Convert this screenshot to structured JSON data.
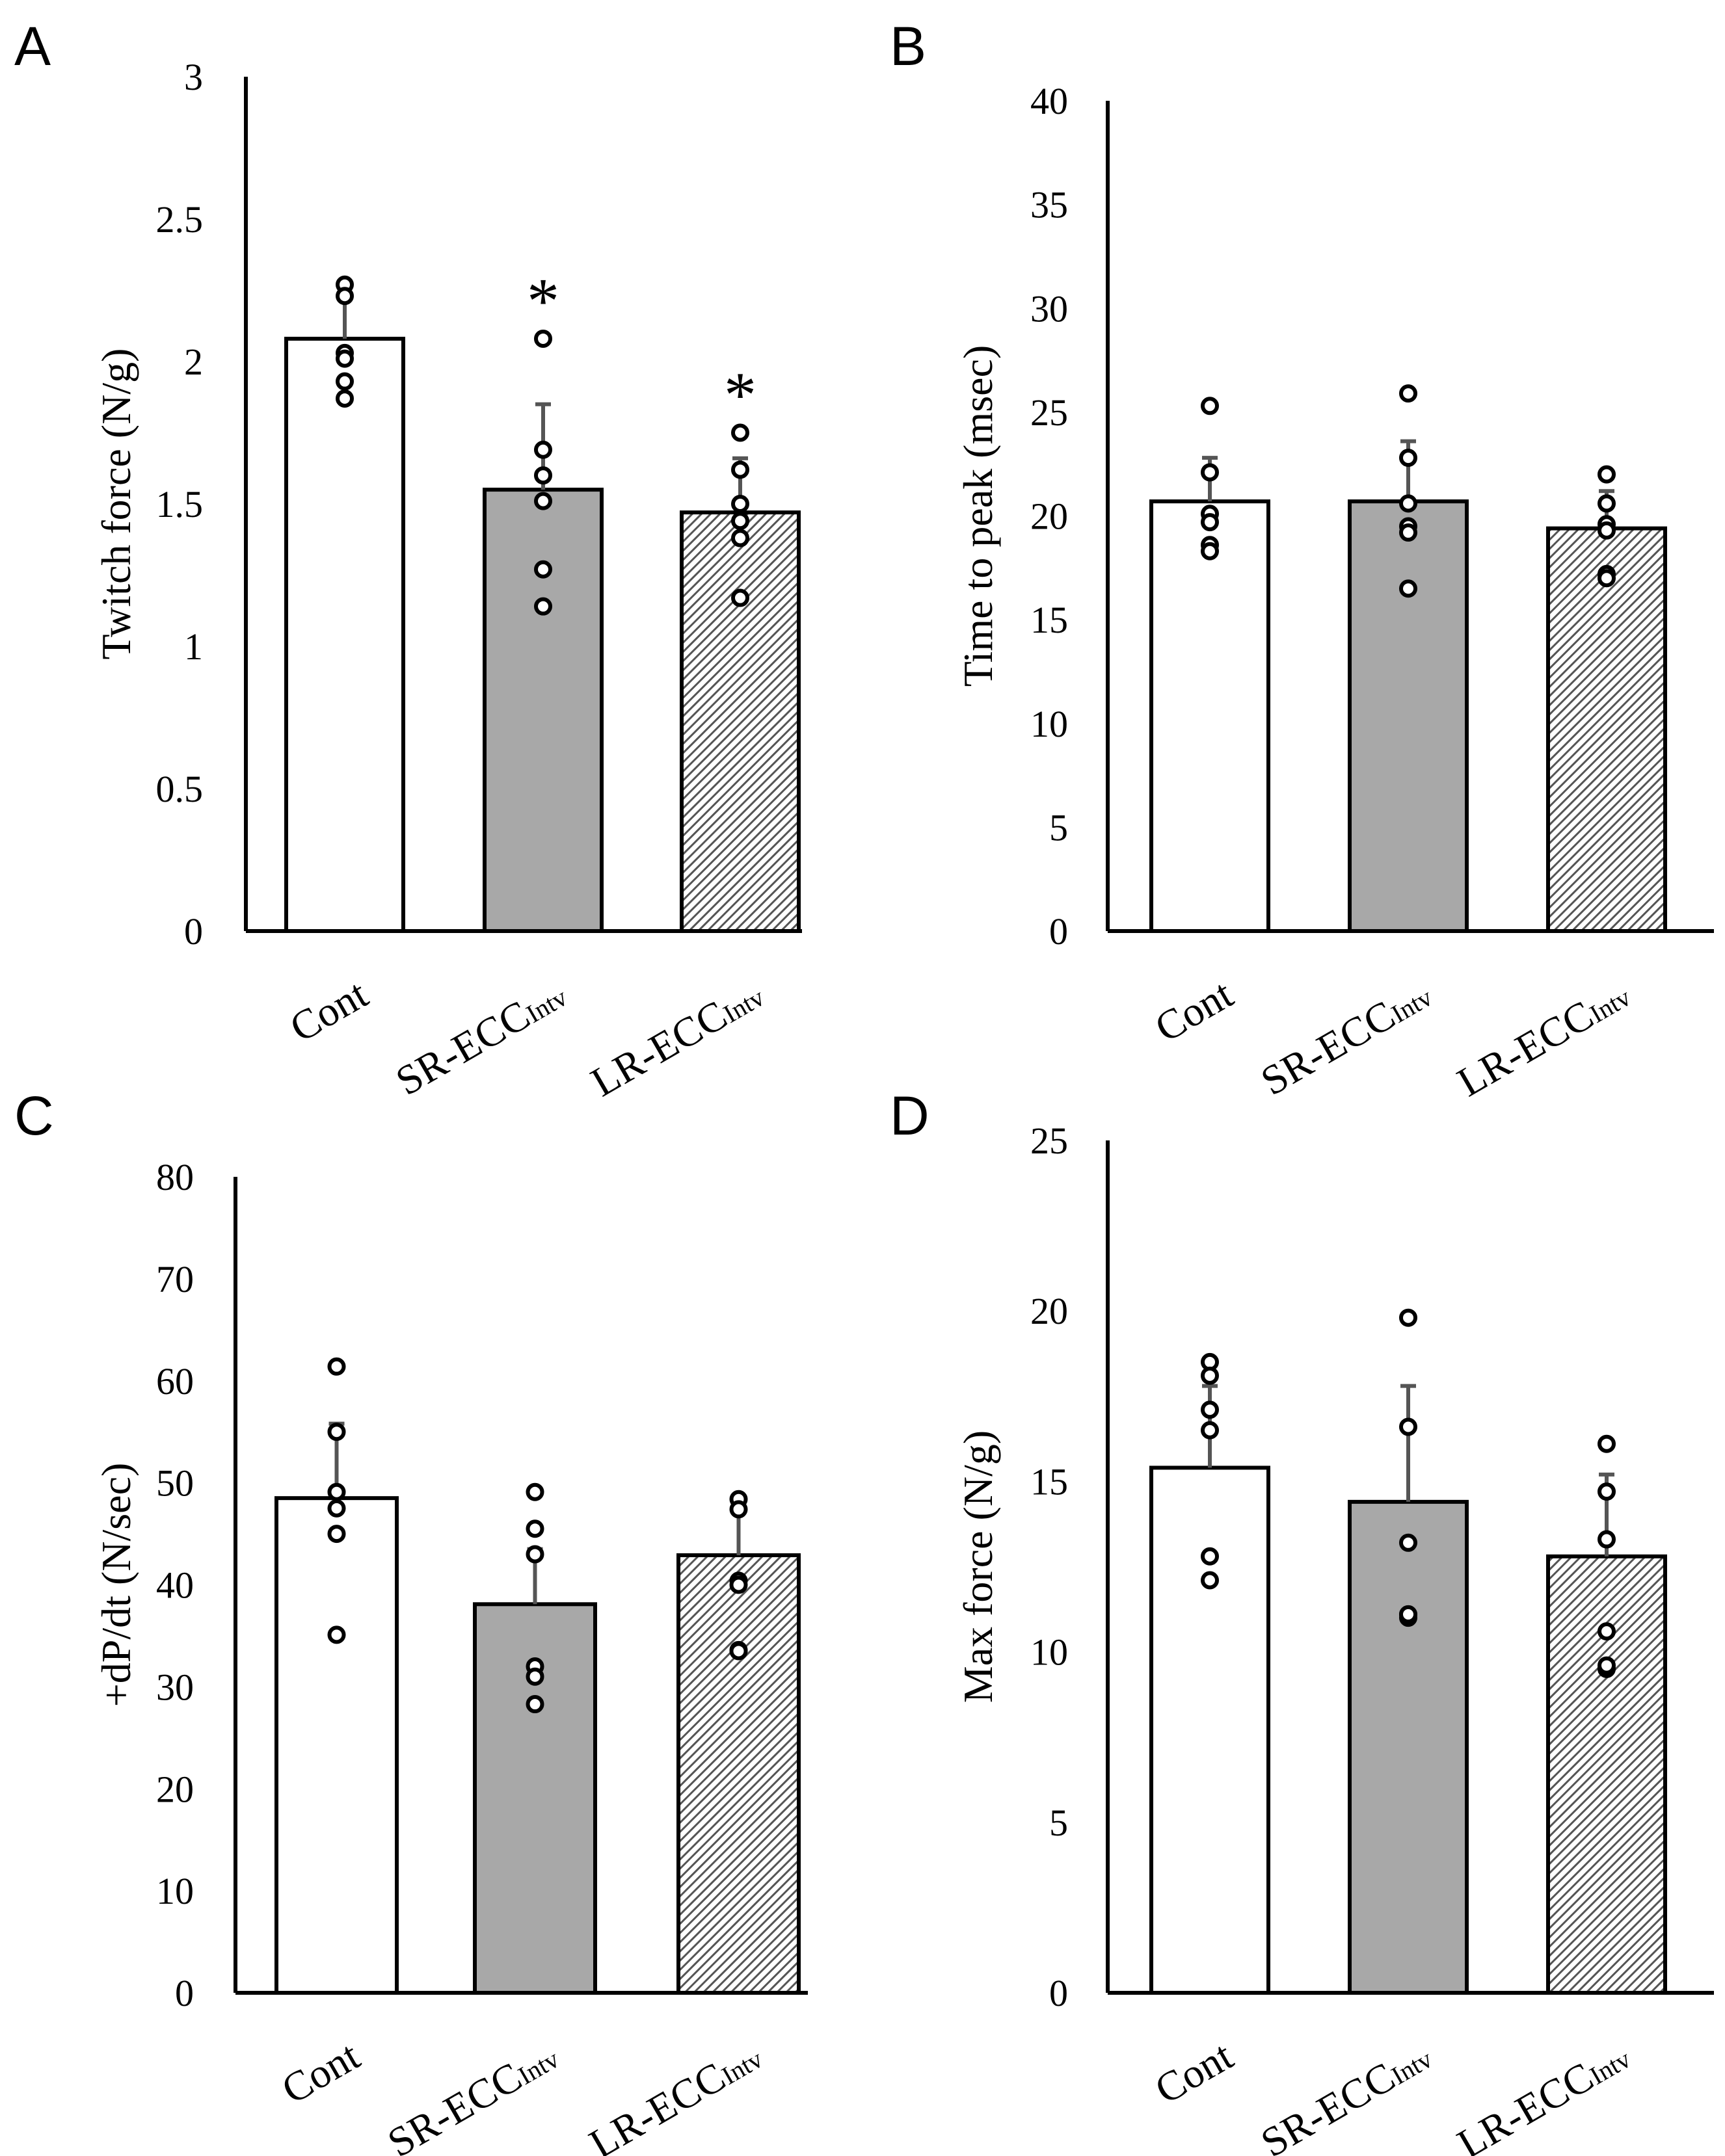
{
  "figure": {
    "colors": {
      "cont": "#ffffff",
      "sr": "#a8a8a8",
      "lr_pattern": "#555555",
      "axis": "#000000",
      "error_bar": "#555555"
    }
  },
  "chart_data": [
    {
      "id": "A",
      "panel_label": "A",
      "type": "bar",
      "ylabel": "Twitch force (N/g)",
      "ylim": [
        0,
        3
      ],
      "yticks": [
        0,
        0.5,
        1,
        1.5,
        2,
        2.5,
        3
      ],
      "ytick_labels": [
        "0",
        "0.5",
        "1",
        "1.5",
        "2",
        "2.5",
        "3"
      ],
      "categories": [
        {
          "main": "Cont",
          "sub": ""
        },
        {
          "main": "SR-ECC",
          "sub": "Intv"
        },
        {
          "main": "LR-ECC",
          "sub": "Intv"
        }
      ],
      "values": [
        2.08,
        1.55,
        1.47
      ],
      "errors": [
        0.15,
        0.3,
        0.19
      ],
      "points": [
        [
          2.27,
          2.23,
          2.03,
          2.01,
          1.93,
          1.87
        ],
        [
          2.08,
          1.69,
          1.6,
          1.51,
          1.27,
          1.14
        ],
        [
          1.75,
          1.62,
          1.5,
          1.44,
          1.38,
          1.17
        ]
      ],
      "annotations": [
        "",
        "*",
        "*"
      ]
    },
    {
      "id": "B",
      "panel_label": "B",
      "type": "bar",
      "ylabel": "Time to peak (msec)",
      "ylim": [
        0,
        40
      ],
      "yticks": [
        0,
        5,
        10,
        15,
        20,
        25,
        30,
        35,
        40
      ],
      "ytick_labels": [
        "0",
        "5",
        "10",
        "15",
        "20",
        "25",
        "30",
        "35",
        "40"
      ],
      "categories": [
        {
          "main": "Cont",
          "sub": ""
        },
        {
          "main": "SR-ECC",
          "sub": "Intv"
        },
        {
          "main": "LR-ECC",
          "sub": "Intv"
        }
      ],
      "values": [
        20.7,
        20.7,
        19.4
      ],
      "errors": [
        2.1,
        2.9,
        1.8
      ],
      "points": [
        [
          25.3,
          22.1,
          20.1,
          19.7,
          18.6,
          18.3
        ],
        [
          25.9,
          22.8,
          20.6,
          19.5,
          19.2,
          16.5
        ],
        [
          22,
          20.6,
          19.6,
          19.3,
          17.2,
          17
        ]
      ],
      "annotations": [
        "",
        "",
        ""
      ]
    },
    {
      "id": "C",
      "panel_label": "C",
      "type": "bar",
      "ylabel": "+dP/dt (N/sec)",
      "ylim": [
        0,
        80
      ],
      "yticks": [
        0,
        10,
        20,
        30,
        40,
        50,
        60,
        70,
        80
      ],
      "ytick_labels": [
        "0",
        "10",
        "20",
        "30",
        "40",
        "50",
        "60",
        "70",
        "80"
      ],
      "categories": [
        {
          "main": "Cont",
          "sub": ""
        },
        {
          "main": "SR-ECC",
          "sub": "Intv"
        },
        {
          "main": "LR-ECC",
          "sub": "Intv"
        }
      ],
      "values": [
        48.5,
        38.1,
        42.9
      ],
      "errors": [
        7.3,
        5.4,
        5.3
      ],
      "points": [
        [
          61.4,
          55,
          49.1,
          47.5,
          45,
          35.1
        ],
        [
          49.1,
          45.5,
          43,
          32,
          31,
          28.3
        ],
        [
          48.4,
          47.4,
          40.4,
          40,
          33.6,
          33.5
        ]
      ],
      "annotations": [
        "",
        "",
        ""
      ]
    },
    {
      "id": "D",
      "panel_label": "D",
      "type": "bar",
      "ylabel": "Max force (N/g)",
      "ylim": [
        0,
        25
      ],
      "yticks": [
        0,
        5,
        10,
        15,
        20,
        25
      ],
      "ytick_labels": [
        "0",
        "5",
        "10",
        "15",
        "20",
        "25"
      ],
      "categories": [
        {
          "main": "Cont",
          "sub": ""
        },
        {
          "main": "SR-ECC",
          "sub": "Intv"
        },
        {
          "main": "LR-ECC",
          "sub": "Intv"
        }
      ],
      "values": [
        15.4,
        14.4,
        12.8
      ],
      "errors": [
        2.4,
        3.4,
        2.4
      ],
      "points": [
        [
          18.5,
          18.1,
          17.1,
          16.5,
          12.8,
          12.1
        ],
        [
          19.8,
          16.6,
          13.2,
          11.1,
          11,
          11.1
        ],
        [
          16.1,
          14.7,
          13.3,
          10.6,
          9.5,
          9.6
        ]
      ],
      "annotations": [
        "",
        "",
        ""
      ]
    }
  ]
}
